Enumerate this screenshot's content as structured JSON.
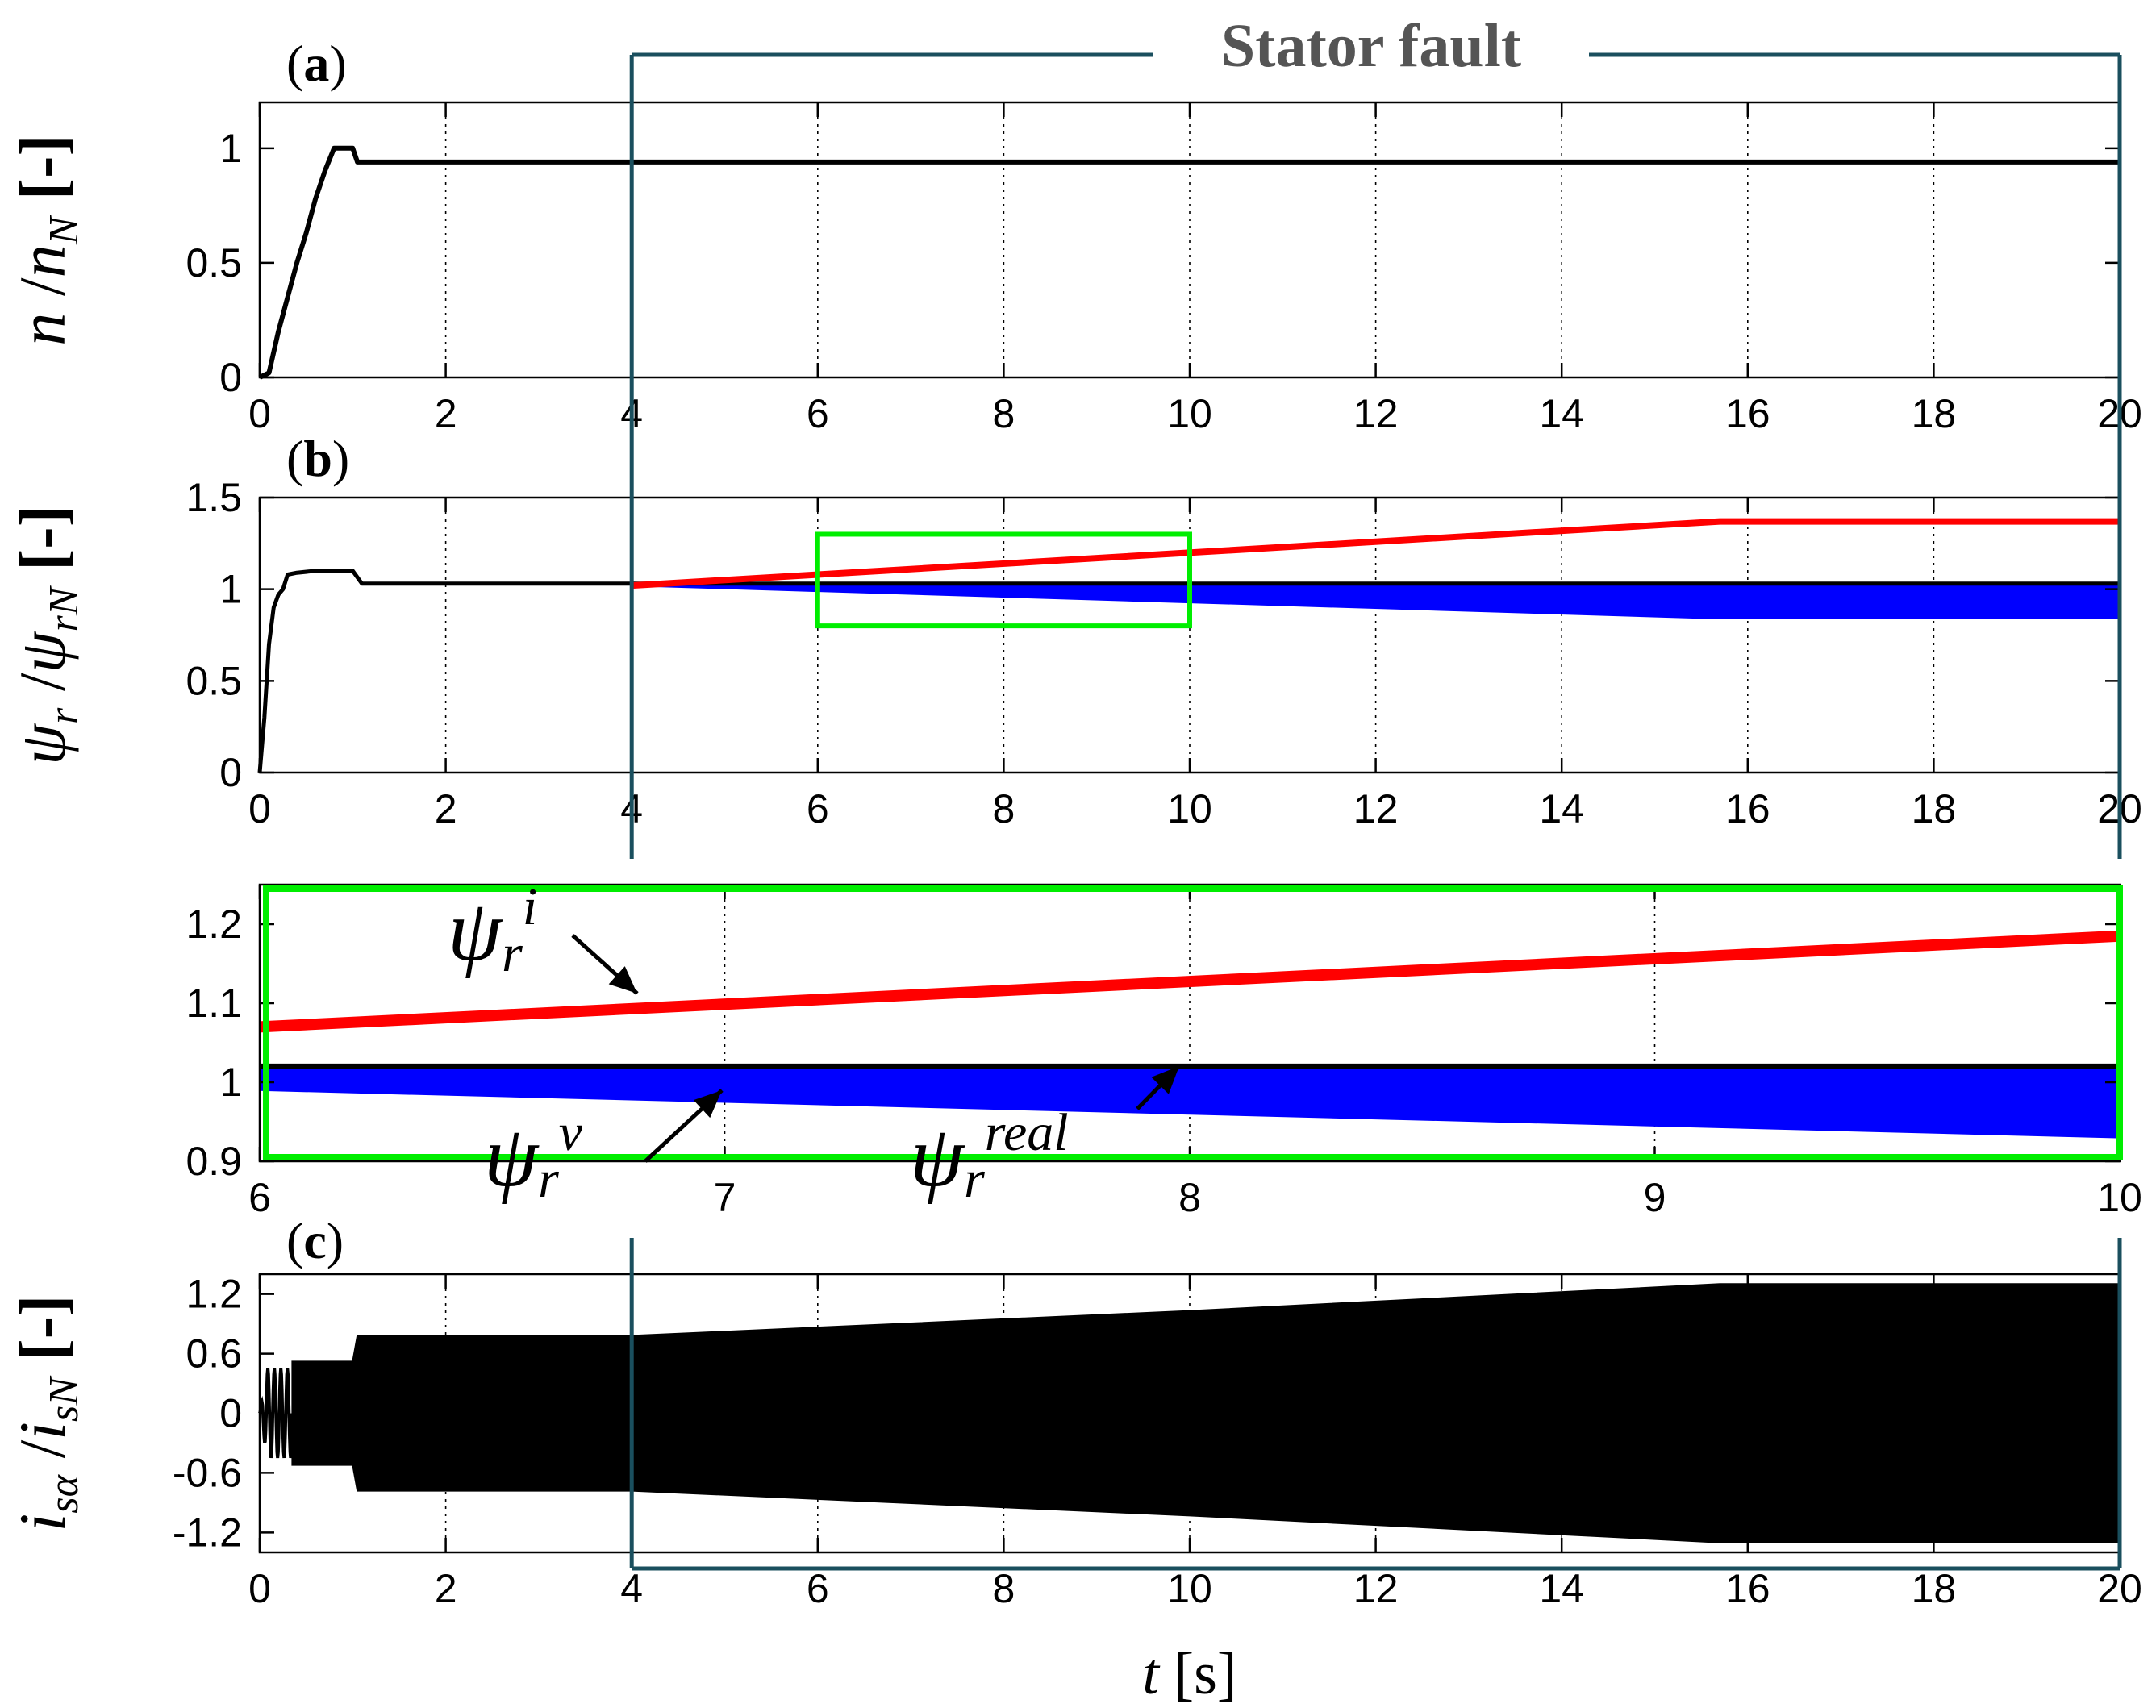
{
  "annotation": {
    "fault_label": "Stator fault",
    "fault_interval": [
      4,
      20
    ],
    "fault_color": "#1a4f5e"
  },
  "colors": {
    "real": "#000000",
    "current_model": "#ff0000",
    "voltage_model": "#0000ff",
    "zoom_box": "#00ee00",
    "grid": "#000000"
  },
  "chart_data": [
    {
      "panel": "(a)",
      "type": "line",
      "ylabel": {
        "main": "n",
        "sep": "/",
        "den": "n",
        "den_sub": "N",
        "unit": "[-]"
      },
      "xlim": [
        0,
        20
      ],
      "ylim": [
        0,
        1.2
      ],
      "xticks": [
        0,
        2,
        4,
        6,
        8,
        10,
        12,
        14,
        16,
        18,
        20
      ],
      "xtick_labels": [
        "0",
        "2",
        "4",
        "6",
        "8",
        "10",
        "12",
        "14",
        "16",
        "18",
        "20"
      ],
      "yticks": [
        0,
        0.5,
        1
      ],
      "ytick_labels": [
        "0",
        "0.5",
        "1"
      ],
      "grid": "x dotted",
      "series": [
        {
          "color": "#000000",
          "x": [
            0,
            0.1,
            0.2,
            0.3,
            0.4,
            0.5,
            0.6,
            0.7,
            0.8,
            0.9,
            1.0,
            1.05,
            20
          ],
          "y": [
            0,
            0.02,
            0.2,
            0.35,
            0.5,
            0.63,
            0.78,
            0.9,
            1.0,
            1.0,
            1.0,
            0.94,
            0.94
          ]
        }
      ]
    },
    {
      "panel": "(b)",
      "type": "line",
      "ylabel": {
        "main": "ψ",
        "main_sub": "r",
        "sep": "/",
        "den": "ψ",
        "den_sub": "rN",
        "unit": "[-]"
      },
      "xlim": [
        0,
        20
      ],
      "ylim": [
        0,
        1.5
      ],
      "xticks": [
        0,
        2,
        4,
        6,
        8,
        10,
        12,
        14,
        16,
        18,
        20
      ],
      "xtick_labels": [
        "0",
        "2",
        "4",
        "6",
        "8",
        "10",
        "12",
        "14",
        "16",
        "18",
        "20"
      ],
      "yticks": [
        0,
        0.5,
        1,
        1.5
      ],
      "ytick_labels": [
        "0",
        "0.5",
        "1",
        "1.5"
      ],
      "grid": "x dotted",
      "zoom_box": {
        "x": [
          6,
          10
        ],
        "y": [
          0.8,
          1.3
        ]
      },
      "series": [
        {
          "key": "real",
          "color": "#000000",
          "x": [
            0,
            0.05,
            0.1,
            0.15,
            0.2,
            0.25,
            0.3,
            0.4,
            0.6,
            0.9,
            1.0,
            1.1,
            20
          ],
          "y": [
            0,
            0.3,
            0.7,
            0.9,
            0.97,
            1.0,
            1.08,
            1.09,
            1.1,
            1.1,
            1.1,
            1.03,
            1.03
          ]
        },
        {
          "key": "current_model",
          "color": "#ff0000",
          "x": [
            4,
            15.7,
            20
          ],
          "y": [
            1.02,
            1.37,
            1.37
          ]
        },
        {
          "key": "voltage_model",
          "color": "#0000ff",
          "band": true,
          "x": [
            4,
            15.7,
            20
          ],
          "upper": [
            1.02,
            1.02,
            1.02
          ],
          "lower": [
            1.02,
            0.84,
            0.84
          ]
        }
      ]
    },
    {
      "panel": "zoom",
      "type": "line",
      "xlim": [
        6,
        10
      ],
      "ylim": [
        0.9,
        1.25
      ],
      "xticks": [
        6,
        7,
        8,
        9,
        10
      ],
      "xtick_labels": [
        "6",
        "7",
        "8",
        "9",
        "10"
      ],
      "yticks": [
        0.9,
        1.0,
        1.1,
        1.2
      ],
      "ytick_labels": [
        "0.9",
        "1",
        "1.1",
        "1.2"
      ],
      "grid": "x dotted",
      "labels": [
        {
          "base": "ψ",
          "sub": "r",
          "sup": "i"
        },
        {
          "base": "ψ",
          "sub": "r",
          "sup": "v"
        },
        {
          "base": "ψ",
          "sub": "r",
          "sup": "real"
        }
      ],
      "series": [
        {
          "key": "current_model",
          "color": "#ff0000",
          "x": [
            6,
            10
          ],
          "y": [
            1.07,
            1.185
          ]
        },
        {
          "key": "voltage_model",
          "color": "#0000ff",
          "band": true,
          "x": [
            6,
            10
          ],
          "upper": [
            1.02,
            1.02
          ],
          "lower": [
            0.99,
            0.93
          ]
        },
        {
          "key": "real",
          "color": "#000000",
          "x": [
            6,
            10
          ],
          "y": [
            1.02,
            1.02
          ]
        }
      ]
    },
    {
      "panel": "(c)",
      "type": "area",
      "ylabel": {
        "main": "i",
        "main_sub": "sα",
        "sep": "/",
        "den": "i",
        "den_sub": "sN",
        "unit": "[-]"
      },
      "xlabel": {
        "var": "t",
        "unit": "[s]"
      },
      "xlim": [
        0,
        20
      ],
      "ylim": [
        -1.4,
        1.4
      ],
      "xticks": [
        0,
        2,
        4,
        6,
        8,
        10,
        12,
        14,
        16,
        18,
        20
      ],
      "xtick_labels": [
        "0",
        "2",
        "4",
        "6",
        "8",
        "10",
        "12",
        "14",
        "16",
        "18",
        "20"
      ],
      "yticks": [
        -1.2,
        -0.6,
        0,
        0.6,
        1.2
      ],
      "ytick_labels": [
        "-1.2",
        "-0.6",
        "0",
        "0.6",
        "1.2"
      ],
      "grid": "x dotted",
      "series": [
        {
          "key": "current",
          "color": "#000000",
          "envelope_x": [
            0.35,
            1.0,
            1.05,
            4,
            10,
            15.7,
            20
          ],
          "envelope_amp": [
            0.52,
            0.52,
            0.78,
            0.78,
            1.03,
            1.3,
            1.3
          ],
          "startup_osc": {
            "t0": 0,
            "t1": 0.35,
            "amp": 0.45
          }
        }
      ]
    }
  ]
}
